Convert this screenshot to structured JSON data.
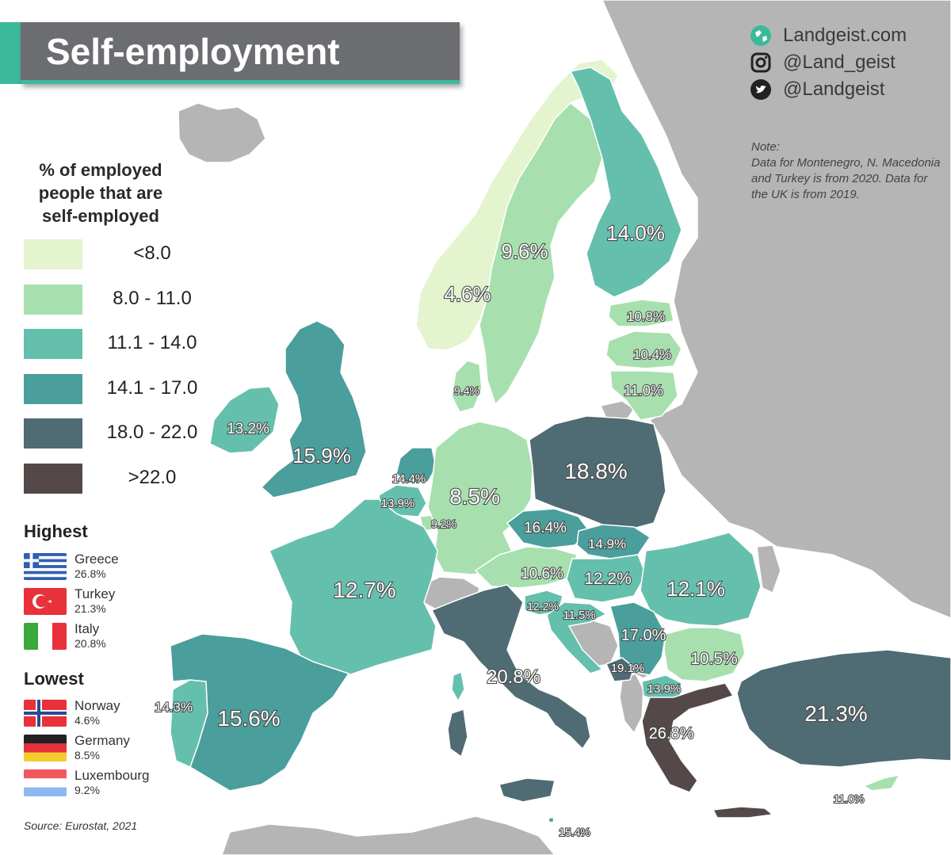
{
  "title": "Self-employment",
  "socials": [
    {
      "icon": "globe-icon",
      "text": "Landgeist.com"
    },
    {
      "icon": "instagram-icon",
      "text": "@Land_geist"
    },
    {
      "icon": "twitter-icon",
      "text": "@Landgeist"
    }
  ],
  "note": {
    "label": "Note:",
    "text": "Data for Montenegro, N. Macedonia and Turkey is from 2020. Data for the UK is from 2019."
  },
  "legend": {
    "title_lines": [
      "% of employed",
      "people that are",
      "self-employed"
    ],
    "items": [
      {
        "label": "<8.0",
        "color": "#e3f4cf"
      },
      {
        "label": "8.0  - 11.0",
        "color": "#a7e0ae"
      },
      {
        "label": "11.1 - 14.0",
        "color": "#65bfad"
      },
      {
        "label": "14.1 - 17.0",
        "color": "#4a9e9b"
      },
      {
        "label": "18.0 - 22.0",
        "color": "#4f6b73"
      },
      {
        "label": ">22.0",
        "color": "#544848"
      }
    ]
  },
  "highest": {
    "heading": "Highest",
    "items": [
      {
        "flag": "greece-flag",
        "name": "Greece",
        "value": "26.8%"
      },
      {
        "flag": "turkey-flag",
        "name": "Turkey",
        "value": "21.3%"
      },
      {
        "flag": "italy-flag",
        "name": "Italy",
        "value": "20.8%"
      }
    ]
  },
  "lowest": {
    "heading": "Lowest",
    "items": [
      {
        "flag": "norway-flag",
        "name": "Norway",
        "value": "4.6%"
      },
      {
        "flag": "germany-flag",
        "name": "Germany",
        "value": "8.5%"
      },
      {
        "flag": "luxembourg-flag",
        "name": "Luxembourg",
        "value": "9.2%"
      }
    ]
  },
  "source": "Source: Eurostat, 2021",
  "colors": {
    "no_data": "#b5b5b5",
    "sea": "#ffffff",
    "accent": "#3cb99b",
    "title_panel": "#6b6d70"
  },
  "map_labels": [
    {
      "id": "norway",
      "text": "4.6%"
    },
    {
      "id": "sweden",
      "text": "9.6%"
    },
    {
      "id": "finland",
      "text": "14.0%"
    },
    {
      "id": "estonia",
      "text": "10.8%"
    },
    {
      "id": "latvia",
      "text": "10.4%"
    },
    {
      "id": "lithuania",
      "text": "11.0%"
    },
    {
      "id": "denmark",
      "text": "9.4%"
    },
    {
      "id": "ireland",
      "text": "13.2%"
    },
    {
      "id": "uk",
      "text": "15.9%"
    },
    {
      "id": "netherlands",
      "text": "14.4%"
    },
    {
      "id": "belgium",
      "text": "13.9%"
    },
    {
      "id": "luxembourg",
      "text": "9.2%"
    },
    {
      "id": "germany",
      "text": "8.5%"
    },
    {
      "id": "poland",
      "text": "18.8%"
    },
    {
      "id": "czechia",
      "text": "16.4%"
    },
    {
      "id": "slovakia",
      "text": "14.9%"
    },
    {
      "id": "austria",
      "text": "10.6%"
    },
    {
      "id": "hungary",
      "text": "12.2%"
    },
    {
      "id": "romania",
      "text": "12.1%"
    },
    {
      "id": "slovenia",
      "text": "12.2%"
    },
    {
      "id": "croatia",
      "text": "11.5%"
    },
    {
      "id": "serbia",
      "text": "17.0%"
    },
    {
      "id": "bulgaria",
      "text": "10.5%"
    },
    {
      "id": "montenegro",
      "text": "19.1%"
    },
    {
      "id": "north-macedonia",
      "text": "13.9%"
    },
    {
      "id": "france",
      "text": "12.7%"
    },
    {
      "id": "portugal",
      "text": "14.3%"
    },
    {
      "id": "spain",
      "text": "15.6%"
    },
    {
      "id": "italy",
      "text": "20.8%"
    },
    {
      "id": "greece",
      "text": "26.8%"
    },
    {
      "id": "turkey",
      "text": "21.3%"
    },
    {
      "id": "cyprus",
      "text": "11.0%"
    },
    {
      "id": "malta",
      "text": "15.4%"
    }
  ]
}
